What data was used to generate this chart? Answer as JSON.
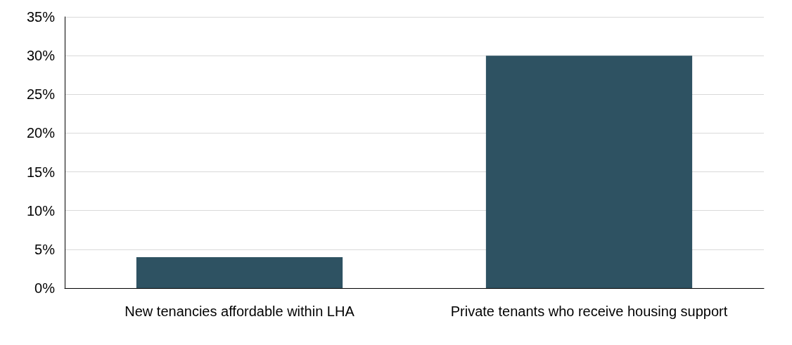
{
  "chart_data": {
    "type": "bar",
    "categories": [
      "New tenancies affordable within LHA",
      "Private tenants who receive housing support"
    ],
    "values": [
      4,
      30
    ],
    "color": "#2e5262",
    "ylim": [
      0,
      35
    ],
    "yticks": [
      {
        "value": 0,
        "label": "0%"
      },
      {
        "value": 5,
        "label": "5%"
      },
      {
        "value": 10,
        "label": "10%"
      },
      {
        "value": 15,
        "label": "15%"
      },
      {
        "value": 20,
        "label": "20%"
      },
      {
        "value": 25,
        "label": "25%"
      },
      {
        "value": 30,
        "label": "30%"
      },
      {
        "value": 35,
        "label": "35%"
      }
    ],
    "grid": "y"
  }
}
